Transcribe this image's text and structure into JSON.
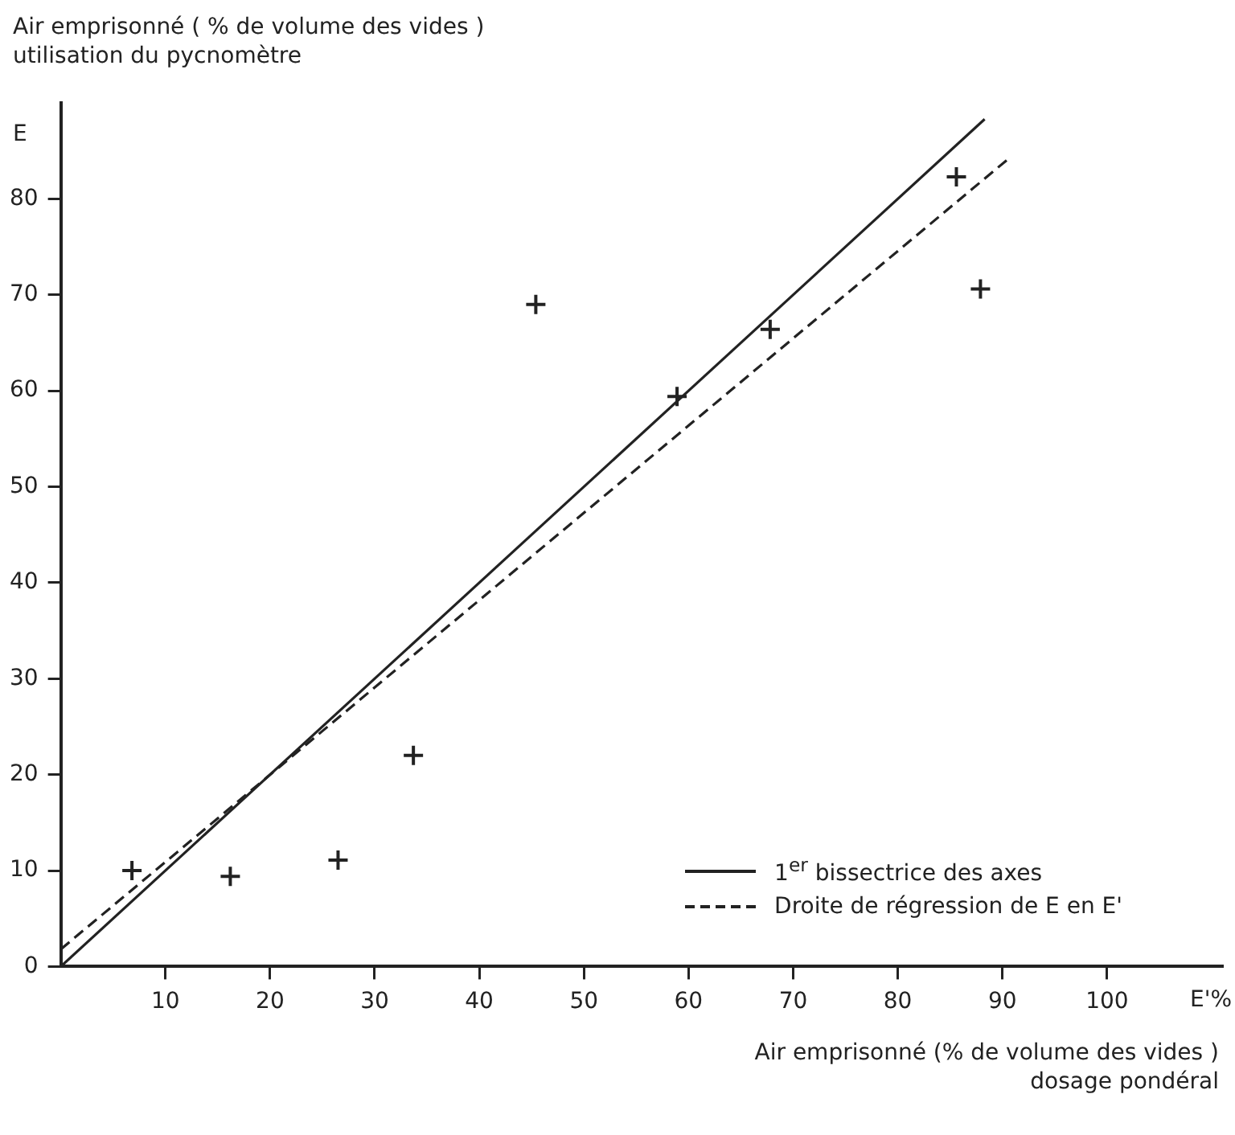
{
  "chart_data": {
    "type": "scatter",
    "ylabel": "Air emprisonné ( % de volume des vides )\nutilisation du pycnomètre",
    "xlabel": "Air emprisonné (% de volume des vides )\ndosage pondéral",
    "annotations": [
      "E",
      "E'%"
    ],
    "xlim": [
      0,
      111
    ],
    "ylim": [
      0,
      90
    ],
    "xticks": [
      10,
      20,
      30,
      40,
      50,
      60,
      70,
      80,
      90,
      100
    ],
    "yticks": [
      0,
      10,
      20,
      30,
      40,
      50,
      60,
      70,
      80
    ],
    "grid": false,
    "legend": "bottom right",
    "series": [
      {
        "color": "#222222",
        "marker": "cross",
        "x": [
          6.8,
          16.2,
          26.5,
          33.7,
          45.4,
          58.9,
          67.8,
          85.6,
          87.9
        ],
        "values": [
          10,
          9.4,
          11.1,
          22,
          69,
          59.4,
          66.4,
          82.3,
          70.6
        ]
      },
      {
        "type": "line",
        "name": "1$^{er}$ bissectrice des axes",
        "color": "#222222",
        "line_style": "solid",
        "marker": "none",
        "x": [
          0,
          88.3
        ],
        "values": [
          0,
          88.3
        ]
      },
      {
        "type": "line",
        "name": "Droite de régression de E en E'",
        "color": "#222222",
        "line_style": "dashed",
        "marker": "none",
        "x": [
          0,
          90.6
        ],
        "values": [
          1.8,
          84.2
        ]
      }
    ]
  }
}
